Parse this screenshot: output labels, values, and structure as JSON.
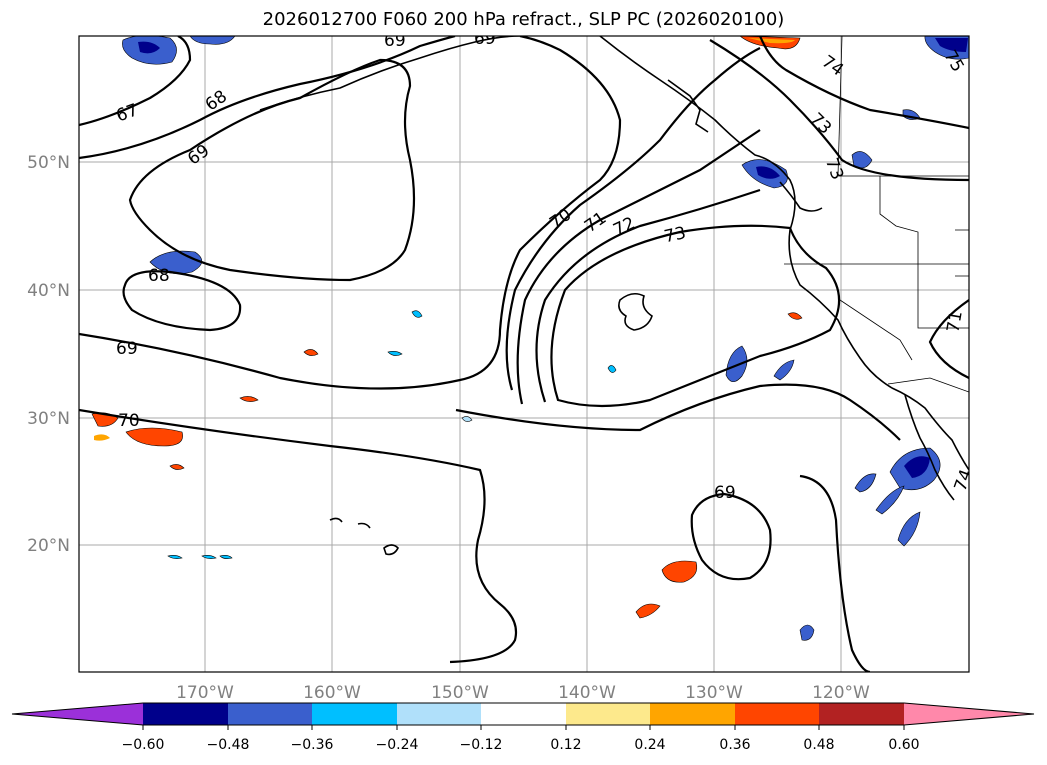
{
  "title": "2026012700 F060 200 hPa refract., SLP PC (2026020100)",
  "lon_labels": [
    "170°W",
    "160°W",
    "150°W",
    "140°W",
    "130°W",
    "120°W"
  ],
  "lat_labels": [
    "50°N",
    "40°N",
    "30°N",
    "20°N"
  ],
  "contour_labels": [
    "67",
    "68",
    "69",
    "69",
    "69",
    "68",
    "69",
    "70",
    "70",
    "71",
    "72",
    "73",
    "69",
    "74",
    "73",
    "73",
    "71",
    "75",
    "74"
  ],
  "colorbar": {
    "ticks": [
      "−0.60",
      "−0.48",
      "−0.36",
      "−0.24",
      "−0.12",
      "0.12",
      "0.24",
      "0.36",
      "0.48",
      "0.60"
    ],
    "colors": [
      "#9b30d9",
      "#00008b",
      "#3a5fcd",
      "#00bfff",
      "#b0e0fa",
      "#ffffff",
      "#fde98c",
      "#ffa500",
      "#ff4500",
      "#b22222",
      "#ff88aa"
    ]
  }
}
